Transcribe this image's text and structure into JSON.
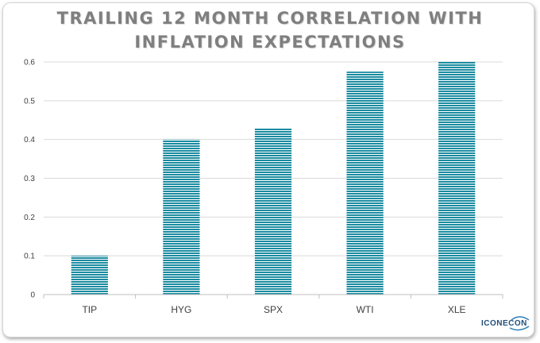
{
  "chart_data": {
    "type": "bar",
    "title_line1": "TRAILING 12 MONTH CORRELATION WITH",
    "title_line2": "INFLATION EXPECTATIONS",
    "categories": [
      "TIP",
      "HYG",
      "SPX",
      "WTI",
      "XLE"
    ],
    "values": [
      0.1,
      0.4,
      0.43,
      0.575,
      0.6
    ],
    "ylim": [
      0,
      0.6
    ],
    "yticks": [
      "0",
      "0.1",
      "0.2",
      "0.3",
      "0.4",
      "0.5",
      "0.6"
    ],
    "grid": true,
    "legend": "none",
    "bar_color": "#1a8ba0"
  },
  "logo": {
    "text": "ICONECON"
  }
}
